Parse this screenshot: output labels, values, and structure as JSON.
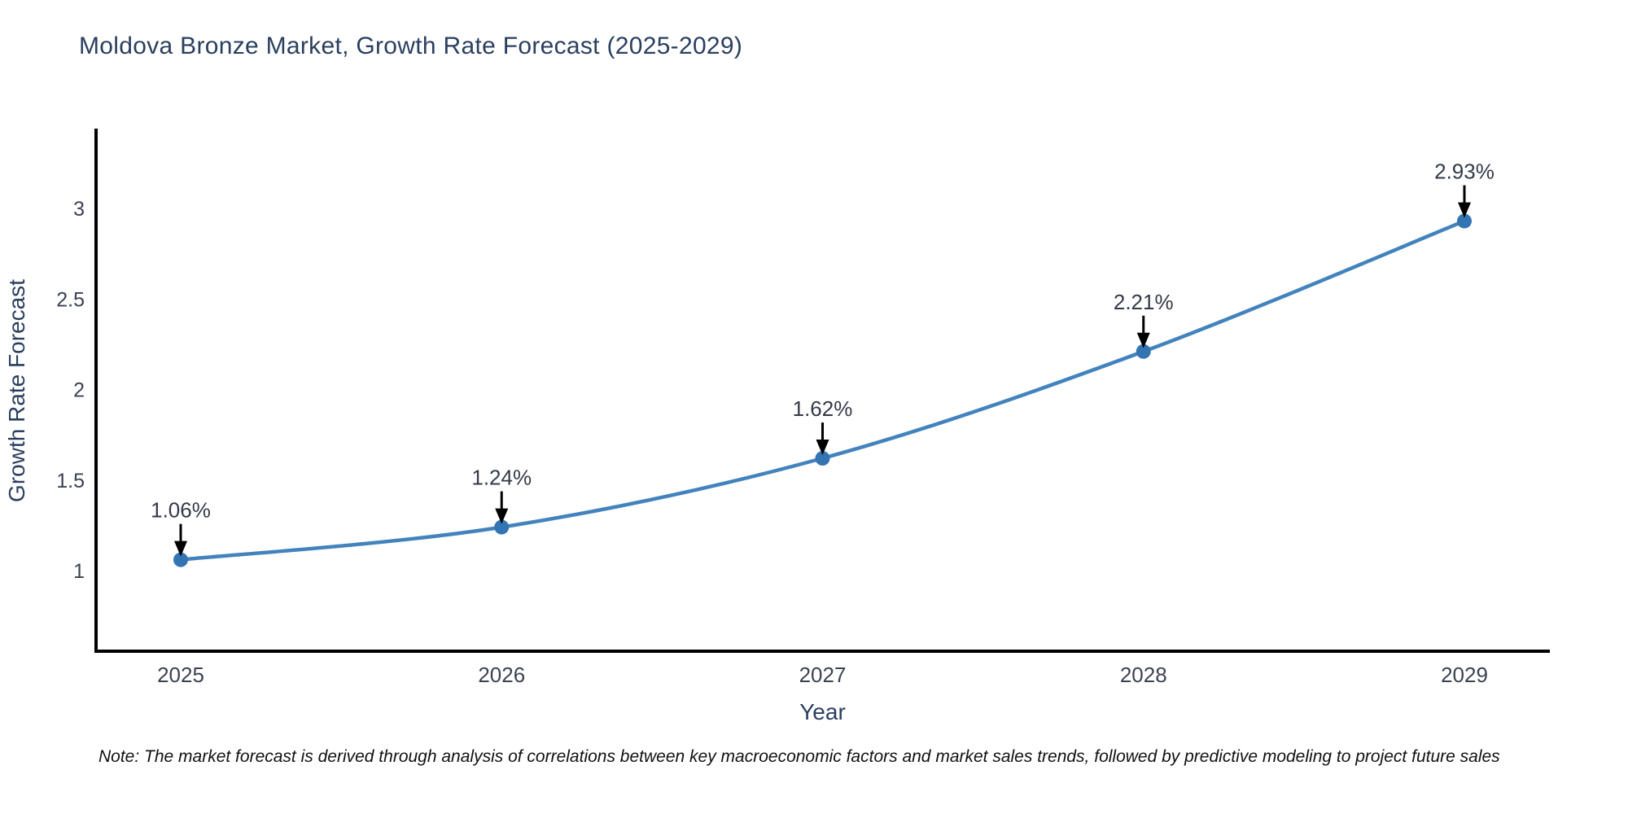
{
  "title": "Moldova Bronze Market, Growth Rate Forecast (2025-2029)",
  "note": "Note: The market forecast is derived through analysis of correlations between key macroeconomic factors and market sales trends, followed by predictive modeling to project future sales",
  "chart_data": {
    "type": "line",
    "title": "Moldova Bronze Market, Growth Rate Forecast (2025-2029)",
    "xlabel": "Year",
    "ylabel": "Growth Rate Forecast",
    "x": [
      2025,
      2026,
      2027,
      2028,
      2029
    ],
    "x_tick_labels": [
      "2025",
      "2026",
      "2027",
      "2028",
      "2029"
    ],
    "series": [
      {
        "name": "Growth Rate Forecast",
        "values": [
          1.06,
          1.24,
          1.62,
          2.21,
          2.93
        ],
        "point_labels": [
          "1.06%",
          "1.24%",
          "1.62%",
          "2.21%",
          "2.93%"
        ]
      }
    ],
    "y_ticks": [
      1,
      1.5,
      2,
      2.5,
      3
    ],
    "y_tick_labels": [
      "1",
      "1.5",
      "2",
      "2.5",
      "3"
    ],
    "ylim": [
      0.55,
      3.45
    ],
    "xlim": [
      2024.73,
      2029.27
    ],
    "grid": false,
    "legend_position": "none",
    "line_shape": "spline",
    "annotation_style": "value-above-with-down-arrow",
    "colors": {
      "line": "#4383bd",
      "marker": "#3374b3",
      "axis_line": "#000000",
      "title_text": "#2a3f5f",
      "axis_title_text": "#2a3f5f",
      "tick_text": "#3b4252",
      "annotation_text": "#333a47",
      "arrow": "#000000",
      "background": "#ffffff"
    }
  }
}
